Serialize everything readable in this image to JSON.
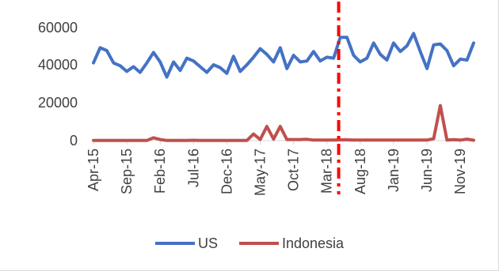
{
  "chart_data": {
    "type": "line",
    "title": "",
    "xlabel": "",
    "ylabel": "",
    "ylim": [
      0,
      60000
    ],
    "y_ticks": [
      "0",
      "20000",
      "40000",
      "60000"
    ],
    "x_tick_labels": [
      "Apr-15",
      "Sep-15",
      "Feb-16",
      "Jul-16",
      "Dec-16",
      "May-17",
      "Oct-17",
      "Mar-18",
      "Aug-18",
      "Jan-19",
      "Jun-19",
      "Nov-19"
    ],
    "x_tick_indices": [
      0,
      5,
      10,
      15,
      20,
      25,
      30,
      35,
      40,
      45,
      50,
      55
    ],
    "marker_line": {
      "index": 37,
      "color": "#ff0000",
      "style": "dash-dot"
    },
    "legend": {
      "position": "bottom"
    },
    "series": [
      {
        "name": "US",
        "color": "#4472c4",
        "values": [
          41000,
          49000,
          47500,
          41000,
          39500,
          36500,
          39000,
          36000,
          41000,
          46500,
          41500,
          33500,
          41500,
          37000,
          43500,
          42000,
          39000,
          36000,
          40000,
          38500,
          35500,
          44500,
          36500,
          40000,
          44000,
          48500,
          45500,
          41500,
          49000,
          38000,
          45000,
          41500,
          42000,
          47000,
          42000,
          44000,
          43500,
          54500,
          54500,
          45000,
          41500,
          43500,
          51500,
          45500,
          42500,
          51500,
          47000,
          50000,
          56500,
          47000,
          38000,
          50500,
          51000,
          47500,
          39500,
          43000,
          42500,
          51500
        ]
      },
      {
        "name": "Indonesia",
        "color": "#c0504d",
        "values": [
          100,
          100,
          100,
          100,
          100,
          100,
          100,
          100,
          100,
          1500,
          600,
          100,
          100,
          100,
          100,
          200,
          100,
          100,
          100,
          100,
          100,
          100,
          100,
          100,
          3500,
          600,
          7500,
          800,
          7500,
          600,
          600,
          600,
          700,
          300,
          300,
          300,
          300,
          400,
          400,
          300,
          300,
          300,
          300,
          300,
          300,
          300,
          300,
          300,
          300,
          300,
          300,
          1000,
          18500,
          300,
          500,
          300,
          800,
          200
        ]
      }
    ]
  }
}
